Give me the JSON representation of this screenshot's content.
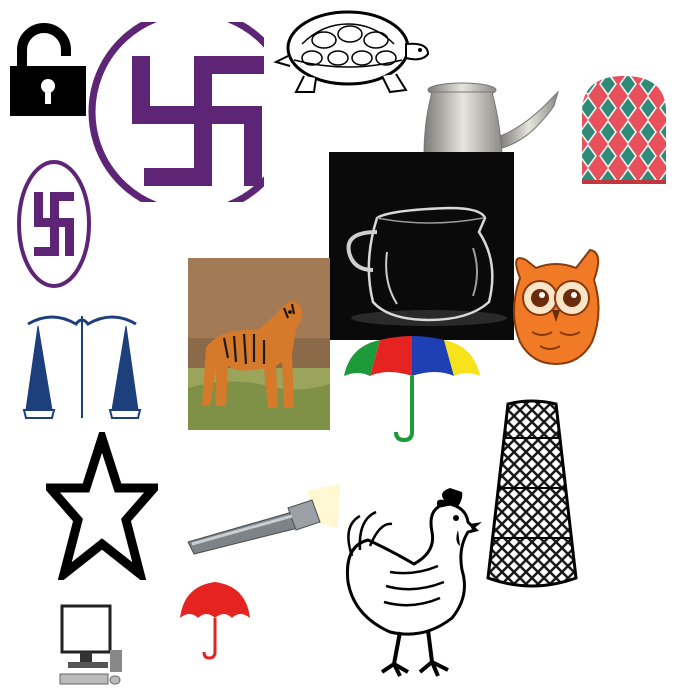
{
  "items": [
    {
      "id": "padlock",
      "icon": "padlock-open-icon"
    },
    {
      "id": "large-swastika",
      "icon": "swastika-circle-icon",
      "color": "#5e2576"
    },
    {
      "id": "tortoise",
      "icon": "tortoise-icon"
    },
    {
      "id": "teapot",
      "icon": "metal-teapot-icon"
    },
    {
      "id": "thimble",
      "icon": "thimble-icon",
      "colors": [
        "#e8505b",
        "#2f8a78"
      ]
    },
    {
      "id": "small-swastika",
      "icon": "swastika-oval-icon",
      "color": "#5e2576"
    },
    {
      "id": "glass-jug",
      "icon": "glass-jug-icon"
    },
    {
      "id": "owl",
      "icon": "owl-icon",
      "color": "#f07a26"
    },
    {
      "id": "tiger",
      "icon": "tiger-photo-icon"
    },
    {
      "id": "scales",
      "icon": "balance-scale-icon",
      "color": "#1d3f7c"
    },
    {
      "id": "umbrella-colored",
      "icon": "rainbow-umbrella-icon",
      "colors": [
        "#e52421",
        "#1d9a3a",
        "#f7e21b",
        "#1f3fb5"
      ]
    },
    {
      "id": "star",
      "icon": "star-outline-icon"
    },
    {
      "id": "torch",
      "icon": "flashlight-icon"
    },
    {
      "id": "rooster",
      "icon": "rooster-icon"
    },
    {
      "id": "basket",
      "icon": "woven-basket-icon"
    },
    {
      "id": "umbrella-red",
      "icon": "red-umbrella-icon",
      "color": "#e52421"
    },
    {
      "id": "computer",
      "icon": "desktop-computer-icon"
    }
  ]
}
